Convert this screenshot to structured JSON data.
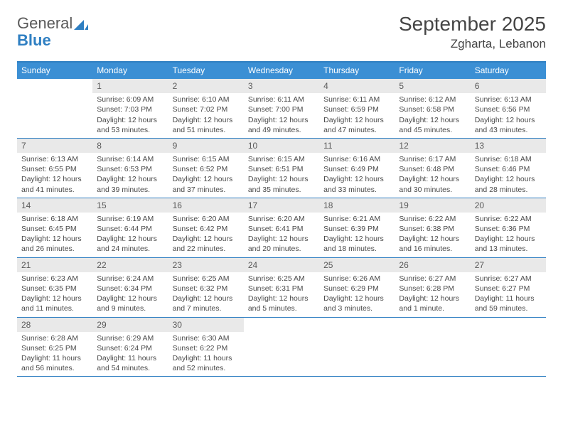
{
  "brand": {
    "part1": "General",
    "part2": "Blue"
  },
  "title": "September 2025",
  "location": "Zgharta, Lebanon",
  "colors": {
    "header_bg": "#3b8fd4",
    "border": "#2f7fc2",
    "daynum_bg": "#e9e9e9",
    "text": "#4a4a4a",
    "title_text": "#454545"
  },
  "days_of_week": [
    "Sunday",
    "Monday",
    "Tuesday",
    "Wednesday",
    "Thursday",
    "Friday",
    "Saturday"
  ],
  "weeks": [
    [
      null,
      {
        "n": "1",
        "sr": "Sunrise: 6:09 AM",
        "ss": "Sunset: 7:03 PM",
        "dl": "Daylight: 12 hours and 53 minutes."
      },
      {
        "n": "2",
        "sr": "Sunrise: 6:10 AM",
        "ss": "Sunset: 7:02 PM",
        "dl": "Daylight: 12 hours and 51 minutes."
      },
      {
        "n": "3",
        "sr": "Sunrise: 6:11 AM",
        "ss": "Sunset: 7:00 PM",
        "dl": "Daylight: 12 hours and 49 minutes."
      },
      {
        "n": "4",
        "sr": "Sunrise: 6:11 AM",
        "ss": "Sunset: 6:59 PM",
        "dl": "Daylight: 12 hours and 47 minutes."
      },
      {
        "n": "5",
        "sr": "Sunrise: 6:12 AM",
        "ss": "Sunset: 6:58 PM",
        "dl": "Daylight: 12 hours and 45 minutes."
      },
      {
        "n": "6",
        "sr": "Sunrise: 6:13 AM",
        "ss": "Sunset: 6:56 PM",
        "dl": "Daylight: 12 hours and 43 minutes."
      }
    ],
    [
      {
        "n": "7",
        "sr": "Sunrise: 6:13 AM",
        "ss": "Sunset: 6:55 PM",
        "dl": "Daylight: 12 hours and 41 minutes."
      },
      {
        "n": "8",
        "sr": "Sunrise: 6:14 AM",
        "ss": "Sunset: 6:53 PM",
        "dl": "Daylight: 12 hours and 39 minutes."
      },
      {
        "n": "9",
        "sr": "Sunrise: 6:15 AM",
        "ss": "Sunset: 6:52 PM",
        "dl": "Daylight: 12 hours and 37 minutes."
      },
      {
        "n": "10",
        "sr": "Sunrise: 6:15 AM",
        "ss": "Sunset: 6:51 PM",
        "dl": "Daylight: 12 hours and 35 minutes."
      },
      {
        "n": "11",
        "sr": "Sunrise: 6:16 AM",
        "ss": "Sunset: 6:49 PM",
        "dl": "Daylight: 12 hours and 33 minutes."
      },
      {
        "n": "12",
        "sr": "Sunrise: 6:17 AM",
        "ss": "Sunset: 6:48 PM",
        "dl": "Daylight: 12 hours and 30 minutes."
      },
      {
        "n": "13",
        "sr": "Sunrise: 6:18 AM",
        "ss": "Sunset: 6:46 PM",
        "dl": "Daylight: 12 hours and 28 minutes."
      }
    ],
    [
      {
        "n": "14",
        "sr": "Sunrise: 6:18 AM",
        "ss": "Sunset: 6:45 PM",
        "dl": "Daylight: 12 hours and 26 minutes."
      },
      {
        "n": "15",
        "sr": "Sunrise: 6:19 AM",
        "ss": "Sunset: 6:44 PM",
        "dl": "Daylight: 12 hours and 24 minutes."
      },
      {
        "n": "16",
        "sr": "Sunrise: 6:20 AM",
        "ss": "Sunset: 6:42 PM",
        "dl": "Daylight: 12 hours and 22 minutes."
      },
      {
        "n": "17",
        "sr": "Sunrise: 6:20 AM",
        "ss": "Sunset: 6:41 PM",
        "dl": "Daylight: 12 hours and 20 minutes."
      },
      {
        "n": "18",
        "sr": "Sunrise: 6:21 AM",
        "ss": "Sunset: 6:39 PM",
        "dl": "Daylight: 12 hours and 18 minutes."
      },
      {
        "n": "19",
        "sr": "Sunrise: 6:22 AM",
        "ss": "Sunset: 6:38 PM",
        "dl": "Daylight: 12 hours and 16 minutes."
      },
      {
        "n": "20",
        "sr": "Sunrise: 6:22 AM",
        "ss": "Sunset: 6:36 PM",
        "dl": "Daylight: 12 hours and 13 minutes."
      }
    ],
    [
      {
        "n": "21",
        "sr": "Sunrise: 6:23 AM",
        "ss": "Sunset: 6:35 PM",
        "dl": "Daylight: 12 hours and 11 minutes."
      },
      {
        "n": "22",
        "sr": "Sunrise: 6:24 AM",
        "ss": "Sunset: 6:34 PM",
        "dl": "Daylight: 12 hours and 9 minutes."
      },
      {
        "n": "23",
        "sr": "Sunrise: 6:25 AM",
        "ss": "Sunset: 6:32 PM",
        "dl": "Daylight: 12 hours and 7 minutes."
      },
      {
        "n": "24",
        "sr": "Sunrise: 6:25 AM",
        "ss": "Sunset: 6:31 PM",
        "dl": "Daylight: 12 hours and 5 minutes."
      },
      {
        "n": "25",
        "sr": "Sunrise: 6:26 AM",
        "ss": "Sunset: 6:29 PM",
        "dl": "Daylight: 12 hours and 3 minutes."
      },
      {
        "n": "26",
        "sr": "Sunrise: 6:27 AM",
        "ss": "Sunset: 6:28 PM",
        "dl": "Daylight: 12 hours and 1 minute."
      },
      {
        "n": "27",
        "sr": "Sunrise: 6:27 AM",
        "ss": "Sunset: 6:27 PM",
        "dl": "Daylight: 11 hours and 59 minutes."
      }
    ],
    [
      {
        "n": "28",
        "sr": "Sunrise: 6:28 AM",
        "ss": "Sunset: 6:25 PM",
        "dl": "Daylight: 11 hours and 56 minutes."
      },
      {
        "n": "29",
        "sr": "Sunrise: 6:29 AM",
        "ss": "Sunset: 6:24 PM",
        "dl": "Daylight: 11 hours and 54 minutes."
      },
      {
        "n": "30",
        "sr": "Sunrise: 6:30 AM",
        "ss": "Sunset: 6:22 PM",
        "dl": "Daylight: 11 hours and 52 minutes."
      },
      null,
      null,
      null,
      null
    ]
  ]
}
